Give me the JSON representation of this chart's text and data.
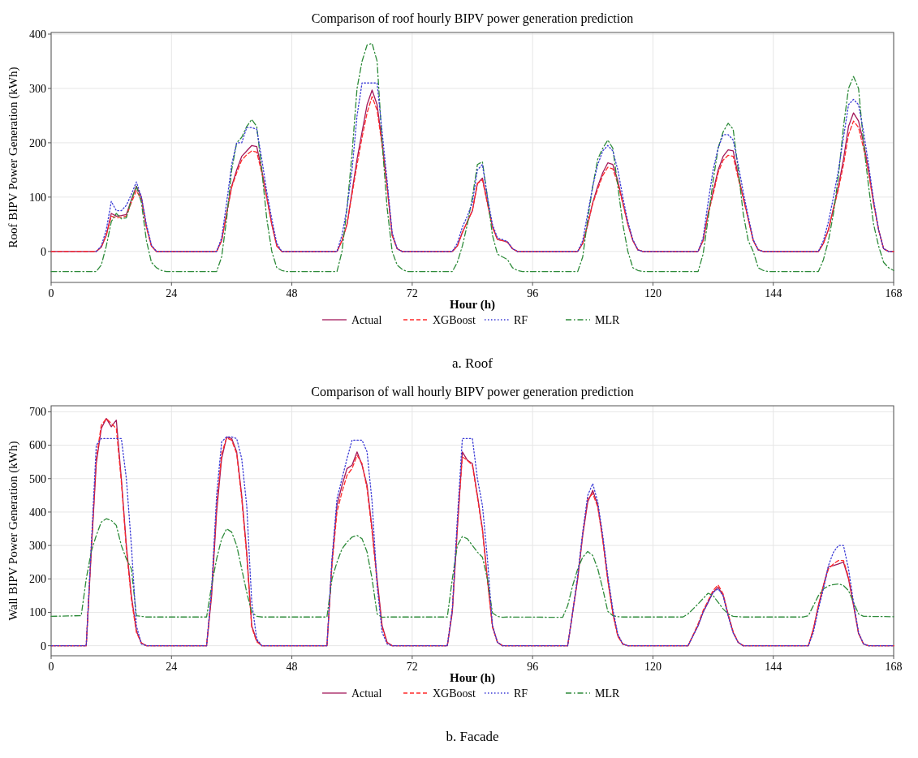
{
  "chart_data": [
    {
      "type": "line",
      "title": "Comparison of roof hourly BIPV power generation prediction",
      "xlabel": "Hour (h)",
      "ylabel": "Roof BIPV Power Generation (kWh)",
      "annotations": [
        "a. Roof"
      ],
      "xlim": [
        0,
        168
      ],
      "xticks": [
        0,
        24,
        48,
        72,
        96,
        120,
        144,
        168
      ],
      "ylim": [
        -57,
        403
      ],
      "yticks": [
        0,
        100,
        200,
        300,
        400
      ],
      "grid": true,
      "legend": "bottom",
      "series": [
        {
          "name": "Actual",
          "color": "#a3195b",
          "line_style": "solid",
          "x": [
            0,
            9,
            10,
            11,
            12,
            13,
            14,
            15,
            16,
            17,
            18,
            19,
            20,
            21,
            33,
            34,
            35,
            36,
            37,
            38,
            39,
            40,
            41,
            42,
            43,
            44,
            45,
            46,
            57,
            58,
            59,
            60,
            61,
            62,
            63,
            64,
            65,
            66,
            67,
            68,
            69,
            70,
            80,
            81,
            82,
            83,
            84,
            85,
            86,
            87,
            88,
            89,
            90,
            91,
            92,
            93,
            105,
            106,
            107,
            108,
            109,
            110,
            111,
            112,
            113,
            114,
            115,
            116,
            117,
            118,
            129,
            130,
            131,
            132,
            133,
            134,
            135,
            136,
            137,
            138,
            139,
            140,
            141,
            142,
            153,
            154,
            155,
            156,
            157,
            158,
            159,
            160,
            161,
            162,
            163,
            164,
            165,
            166,
            167,
            168
          ],
          "values": [
            0,
            0,
            8,
            30,
            70,
            65,
            66,
            68,
            95,
            120,
            100,
            45,
            10,
            0,
            0,
            20,
            70,
            120,
            150,
            175,
            185,
            195,
            193,
            150,
            100,
            50,
            10,
            0,
            0,
            20,
            50,
            110,
            170,
            220,
            270,
            297,
            270,
            200,
            120,
            30,
            5,
            0,
            0,
            10,
            35,
            55,
            75,
            125,
            135,
            90,
            45,
            22,
            20,
            17,
            5,
            0,
            0,
            15,
            50,
            90,
            120,
            145,
            163,
            160,
            130,
            90,
            50,
            20,
            3,
            0,
            0,
            20,
            70,
            110,
            150,
            175,
            187,
            185,
            140,
            100,
            60,
            20,
            3,
            0,
            0,
            15,
            40,
            80,
            120,
            170,
            230,
            255,
            240,
            200,
            150,
            90,
            40,
            5,
            0,
            0
          ]
        },
        {
          "name": "XGBoost",
          "color": "#ff2a2a",
          "line_style": "dashed",
          "x": [
            0,
            9,
            10,
            11,
            12,
            13,
            14,
            15,
            16,
            17,
            18,
            19,
            20,
            21,
            33,
            34,
            35,
            36,
            37,
            38,
            39,
            40,
            41,
            42,
            43,
            44,
            45,
            46,
            57,
            58,
            59,
            60,
            61,
            62,
            63,
            64,
            65,
            66,
            67,
            68,
            69,
            70,
            80,
            81,
            82,
            83,
            84,
            85,
            86,
            87,
            88,
            89,
            90,
            91,
            92,
            93,
            105,
            106,
            107,
            108,
            109,
            110,
            111,
            112,
            113,
            114,
            115,
            116,
            117,
            118,
            129,
            130,
            131,
            132,
            133,
            134,
            135,
            136,
            137,
            138,
            139,
            140,
            141,
            142,
            153,
            154,
            155,
            156,
            157,
            158,
            159,
            160,
            161,
            162,
            163,
            164,
            165,
            166,
            167,
            168
          ],
          "values": [
            0,
            0,
            8,
            30,
            65,
            62,
            63,
            65,
            90,
            112,
            95,
            45,
            10,
            0,
            0,
            20,
            70,
            118,
            145,
            168,
            178,
            185,
            183,
            145,
            98,
            50,
            10,
            0,
            0,
            20,
            50,
            105,
            160,
            210,
            255,
            285,
            260,
            195,
            118,
            30,
            5,
            0,
            0,
            10,
            35,
            55,
            75,
            125,
            132,
            88,
            45,
            22,
            20,
            17,
            5,
            0,
            0,
            15,
            50,
            88,
            115,
            140,
            155,
            152,
            125,
            88,
            50,
            20,
            3,
            0,
            0,
            20,
            68,
            105,
            145,
            168,
            177,
            175,
            135,
            98,
            60,
            20,
            3,
            0,
            0,
            15,
            40,
            78,
            115,
            160,
            215,
            240,
            228,
            190,
            145,
            88,
            40,
            5,
            0,
            0
          ]
        },
        {
          "name": "RF",
          "color": "#3b3bd6",
          "line_style": "dotted",
          "x": [
            9,
            10,
            11,
            12,
            13,
            14,
            15,
            16,
            17,
            18,
            19,
            20,
            21,
            33,
            34,
            35,
            36,
            37,
            38,
            39,
            40,
            41,
            42,
            43,
            44,
            45,
            46,
            57,
            58,
            59,
            60,
            61,
            62,
            63,
            64,
            65,
            66,
            67,
            68,
            69,
            70,
            80,
            81,
            82,
            83,
            84,
            85,
            86,
            87,
            88,
            89,
            90,
            91,
            92,
            93,
            105,
            106,
            107,
            108,
            109,
            110,
            111,
            112,
            113,
            114,
            115,
            116,
            117,
            118,
            129,
            130,
            131,
            132,
            133,
            134,
            135,
            136,
            137,
            138,
            139,
            140,
            141,
            142,
            153,
            154,
            155,
            156,
            157,
            158,
            159,
            160,
            161,
            162,
            163,
            164,
            165,
            166,
            167,
            168
          ],
          "values": [
            0,
            10,
            40,
            92,
            75,
            75,
            85,
            105,
            128,
            100,
            50,
            12,
            0,
            0,
            25,
            90,
            160,
            200,
            200,
            228,
            228,
            225,
            170,
            110,
            60,
            15,
            0,
            0,
            30,
            80,
            150,
            250,
            310,
            310,
            310,
            310,
            220,
            130,
            35,
            5,
            0,
            0,
            15,
            45,
            65,
            90,
            150,
            160,
            100,
            50,
            25,
            22,
            18,
            5,
            0,
            0,
            20,
            70,
            120,
            160,
            185,
            195,
            185,
            150,
            100,
            55,
            22,
            3,
            0,
            0,
            25,
            90,
            150,
            190,
            215,
            215,
            205,
            160,
            110,
            65,
            22,
            3,
            0,
            0,
            20,
            55,
            100,
            150,
            210,
            270,
            280,
            270,
            220,
            160,
            95,
            40,
            5,
            0,
            0
          ]
        },
        {
          "name": "MLR",
          "color": "#2e8b3a",
          "line_style": "dashdot",
          "x": [
            0,
            9,
            10,
            11,
            12,
            13,
            14,
            15,
            16,
            17,
            18,
            19,
            20,
            21,
            22,
            23,
            33,
            34,
            35,
            36,
            37,
            38,
            39,
            40,
            41,
            42,
            43,
            44,
            45,
            46,
            47,
            57,
            58,
            59,
            60,
            61,
            62,
            63,
            64,
            65,
            66,
            67,
            68,
            69,
            70,
            71,
            80,
            81,
            82,
            83,
            84,
            85,
            86,
            87,
            88,
            89,
            90,
            91,
            92,
            93,
            94,
            105,
            106,
            107,
            108,
            109,
            110,
            111,
            112,
            113,
            114,
            115,
            116,
            117,
            118,
            129,
            130,
            131,
            132,
            133,
            134,
            135,
            136,
            137,
            138,
            139,
            140,
            141,
            142,
            143,
            153,
            154,
            155,
            156,
            157,
            158,
            159,
            160,
            161,
            162,
            163,
            164,
            165,
            166,
            167,
            168
          ],
          "values": [
            -37,
            -37,
            -25,
            10,
            55,
            70,
            60,
            62,
            95,
            120,
            90,
            20,
            -20,
            -30,
            -35,
            -37,
            -37,
            -10,
            60,
            150,
            200,
            210,
            230,
            243,
            230,
            150,
            60,
            0,
            -30,
            -35,
            -37,
            -37,
            0,
            80,
            180,
            300,
            350,
            380,
            383,
            350,
            200,
            80,
            0,
            -25,
            -33,
            -37,
            -37,
            -20,
            10,
            50,
            100,
            160,
            165,
            100,
            30,
            -5,
            -10,
            -15,
            -30,
            -35,
            -37,
            -37,
            -10,
            60,
            120,
            170,
            190,
            205,
            190,
            120,
            50,
            0,
            -30,
            -35,
            -37,
            -37,
            -5,
            60,
            130,
            190,
            220,
            236,
            225,
            150,
            70,
            20,
            0,
            -30,
            -35,
            -37,
            -37,
            -15,
            20,
            70,
            140,
            230,
            300,
            322,
            300,
            200,
            120,
            50,
            10,
            -20,
            -30,
            -35
          ]
        }
      ]
    },
    {
      "type": "line",
      "title": "Comparison of wall hourly BIPV power generation prediction",
      "xlabel": "Hour (h)",
      "ylabel": "Wall BIPV Power Generation (kWh)",
      "annotations": [
        "b. Facade"
      ],
      "xlim": [
        0,
        168
      ],
      "xticks": [
        0,
        24,
        48,
        72,
        96,
        120,
        144,
        168
      ],
      "ylim": [
        -30,
        718
      ],
      "yticks": [
        0,
        100,
        200,
        300,
        400,
        500,
        600,
        700
      ],
      "grid": true,
      "legend": "bottom",
      "series": [
        {
          "name": "Actual",
          "color": "#a3195b",
          "line_style": "solid",
          "x": [
            0,
            7,
            8,
            9,
            10,
            11,
            12,
            13,
            14,
            15,
            16,
            17,
            18,
            19,
            31,
            32,
            33,
            34,
            35,
            36,
            37,
            38,
            39,
            40,
            41,
            42,
            55,
            56,
            57,
            58,
            59,
            60,
            61,
            62,
            63,
            64,
            65,
            66,
            67,
            68,
            79,
            80,
            81,
            82,
            83,
            84,
            85,
            86,
            87,
            88,
            89,
            90,
            103,
            104,
            105,
            106,
            107,
            108,
            109,
            110,
            111,
            112,
            113,
            114,
            115,
            127,
            128,
            129,
            130,
            131,
            132,
            133,
            134,
            135,
            136,
            137,
            138,
            151,
            152,
            153,
            154,
            155,
            156,
            157,
            158,
            159,
            160,
            161,
            162,
            163,
            168
          ],
          "values": [
            0,
            0,
            280,
            545,
            650,
            680,
            655,
            675,
            500,
            300,
            150,
            45,
            8,
            0,
            0,
            150,
            400,
            560,
            625,
            620,
            580,
            450,
            280,
            60,
            15,
            0,
            0,
            250,
            420,
            480,
            530,
            540,
            580,
            540,
            480,
            350,
            200,
            60,
            10,
            0,
            0,
            100,
            350,
            580,
            555,
            545,
            450,
            350,
            200,
            60,
            10,
            0,
            0,
            100,
            200,
            330,
            430,
            465,
            420,
            320,
            200,
            100,
            30,
            5,
            0,
            0,
            30,
            60,
            100,
            130,
            160,
            175,
            150,
            90,
            40,
            10,
            0,
            0,
            50,
            120,
            180,
            236,
            240,
            245,
            250,
            200,
            120,
            36,
            5,
            0,
            0
          ]
        },
        {
          "name": "XGBoost",
          "color": "#ff2a2a",
          "line_style": "dashed",
          "x": [
            0,
            7,
            8,
            9,
            10,
            11,
            12,
            13,
            14,
            15,
            16,
            17,
            18,
            19,
            31,
            32,
            33,
            34,
            35,
            36,
            37,
            38,
            39,
            40,
            41,
            42,
            55,
            56,
            57,
            58,
            59,
            60,
            61,
            62,
            63,
            64,
            65,
            66,
            67,
            68,
            79,
            80,
            81,
            82,
            83,
            84,
            85,
            86,
            87,
            88,
            89,
            90,
            103,
            104,
            105,
            106,
            107,
            108,
            109,
            110,
            111,
            112,
            113,
            114,
            115,
            127,
            128,
            129,
            130,
            131,
            132,
            133,
            134,
            135,
            136,
            137,
            138,
            151,
            152,
            153,
            154,
            155,
            156,
            157,
            158,
            159,
            160,
            161,
            162,
            163,
            168
          ],
          "values": [
            0,
            0,
            290,
            560,
            660,
            680,
            665,
            650,
            490,
            290,
            140,
            40,
            8,
            0,
            0,
            160,
            420,
            575,
            622,
            615,
            575,
            440,
            270,
            55,
            12,
            0,
            0,
            240,
            400,
            460,
            510,
            530,
            570,
            545,
            470,
            340,
            190,
            55,
            8,
            0,
            0,
            110,
            360,
            565,
            555,
            540,
            445,
            345,
            195,
            55,
            10,
            0,
            0,
            100,
            205,
            335,
            440,
            455,
            415,
            315,
            195,
            95,
            28,
            5,
            0,
            0,
            32,
            65,
            105,
            135,
            165,
            182,
            155,
            95,
            42,
            10,
            0,
            0,
            50,
            120,
            180,
            230,
            245,
            255,
            255,
            205,
            125,
            38,
            5,
            0,
            0
          ]
        },
        {
          "name": "RF",
          "color": "#3b3bd6",
          "line_style": "dotted",
          "x": [
            0,
            7,
            8,
            9,
            10,
            11,
            12,
            13,
            14,
            15,
            16,
            17,
            18,
            19,
            31,
            32,
            33,
            34,
            35,
            36,
            37,
            38,
            39,
            40,
            41,
            42,
            55,
            56,
            57,
            58,
            59,
            60,
            61,
            62,
            63,
            64,
            65,
            66,
            67,
            68,
            79,
            80,
            81,
            82,
            83,
            84,
            85,
            86,
            87,
            88,
            89,
            90,
            103,
            104,
            105,
            106,
            107,
            108,
            109,
            110,
            111,
            112,
            113,
            114,
            115,
            127,
            128,
            129,
            130,
            131,
            132,
            133,
            134,
            135,
            136,
            137,
            138,
            151,
            152,
            153,
            154,
            155,
            156,
            157,
            158,
            159,
            160,
            161,
            162,
            163,
            168
          ],
          "values": [
            0,
            0,
            300,
            600,
            620,
            620,
            620,
            620,
            620,
            500,
            300,
            60,
            5,
            0,
            0,
            170,
            450,
            610,
            625,
            625,
            620,
            560,
            420,
            130,
            20,
            0,
            0,
            260,
            440,
            500,
            560,
            615,
            615,
            615,
            580,
            430,
            180,
            40,
            5,
            0,
            0,
            110,
            380,
            620,
            620,
            620,
            500,
            420,
            260,
            60,
            10,
            0,
            0,
            100,
            210,
            340,
            450,
            485,
            430,
            330,
            210,
            110,
            35,
            5,
            0,
            0,
            30,
            60,
            100,
            130,
            160,
            170,
            150,
            90,
            38,
            10,
            0,
            0,
            40,
            110,
            170,
            240,
            280,
            300,
            300,
            230,
            130,
            40,
            5,
            0,
            0
          ]
        },
        {
          "name": "MLR",
          "color": "#2e8b3a",
          "line_style": "dashdot",
          "x": [
            0,
            6,
            7,
            8,
            9,
            10,
            11,
            12,
            13,
            14,
            15,
            16,
            17,
            18,
            19,
            31,
            32,
            33,
            34,
            35,
            36,
            37,
            38,
            39,
            40,
            41,
            42,
            55,
            56,
            57,
            58,
            59,
            60,
            61,
            62,
            63,
            64,
            65,
            66,
            67,
            79,
            80,
            81,
            82,
            83,
            84,
            85,
            86,
            87,
            88,
            89,
            90,
            91,
            102,
            103,
            104,
            105,
            106,
            107,
            108,
            109,
            110,
            111,
            112,
            113,
            114,
            126,
            127,
            128,
            129,
            130,
            131,
            132,
            133,
            134,
            135,
            136,
            137,
            138,
            139,
            150,
            151,
            152,
            153,
            154,
            155,
            156,
            157,
            158,
            159,
            160,
            161,
            162,
            168
          ],
          "values": [
            88,
            90,
            200,
            282,
            330,
            370,
            380,
            375,
            360,
            300,
            260,
            230,
            90,
            88,
            86,
            86,
            180,
            260,
            320,
            350,
            340,
            300,
            230,
            160,
            100,
            88,
            86,
            86,
            200,
            250,
            290,
            310,
            325,
            330,
            320,
            280,
            200,
            95,
            85,
            86,
            86,
            200,
            300,
            327,
            320,
            300,
            280,
            265,
            200,
            98,
            88,
            85,
            86,
            85,
            120,
            180,
            230,
            265,
            282,
            270,
            230,
            170,
            103,
            90,
            87,
            86,
            86,
            95,
            110,
            125,
            141,
            157,
            150,
            130,
            110,
            95,
            88,
            87,
            86,
            86,
            86,
            90,
            120,
            150,
            170,
            179,
            183,
            185,
            180,
            165,
            130,
            95,
            88,
            87
          ]
        }
      ]
    }
  ]
}
